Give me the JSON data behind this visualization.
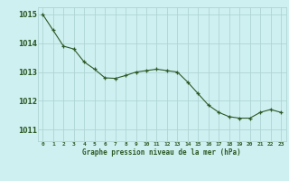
{
  "x": [
    0,
    1,
    2,
    3,
    4,
    5,
    6,
    7,
    8,
    9,
    10,
    11,
    12,
    13,
    14,
    15,
    16,
    17,
    18,
    19,
    20,
    21,
    22,
    23
  ],
  "y": [
    1015.0,
    1014.45,
    1013.9,
    1013.8,
    1013.35,
    1013.1,
    1012.8,
    1012.78,
    1012.88,
    1013.0,
    1013.05,
    1013.1,
    1013.05,
    1013.0,
    1012.65,
    1012.25,
    1011.85,
    1011.6,
    1011.45,
    1011.4,
    1011.4,
    1011.6,
    1011.7,
    1011.6
  ],
  "line_color": "#2d5a27",
  "marker": "+",
  "bg_color": "#cff0f0",
  "grid_color": "#aed4d4",
  "ylabel_ticks": [
    1011,
    1012,
    1013,
    1014,
    1015
  ],
  "xlabel": "Graphe pression niveau de la mer (hPa)",
  "xlabel_color": "#2d5a27",
  "tick_color": "#2d5a27",
  "ylim": [
    1010.6,
    1015.25
  ],
  "xlim": [
    -0.5,
    23.5
  ]
}
